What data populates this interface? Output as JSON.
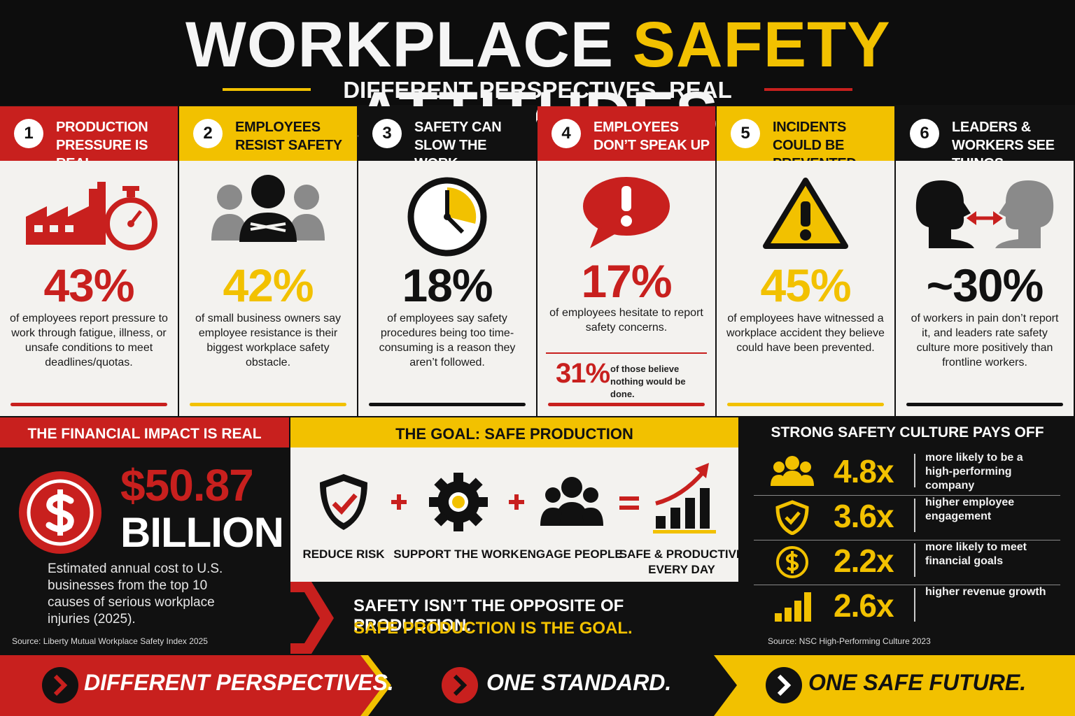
{
  "header": {
    "title_start": "WORKPLACE",
    "title_highlight": "SAFETY",
    "title_end": "ATTITUDES",
    "subtitle": "DIFFERENT PERSPECTIVES. REAL IMPACT."
  },
  "cards": [
    {
      "number": "1",
      "heading": "PRODUCTION PRESSURE IS REAL",
      "stat": "43%",
      "description": "of employees report pressure to work through fatigue, illness, or unsafe conditions to meet deadlines/quotas."
    },
    {
      "number": "2",
      "heading": "EMPLOYEES RESIST SAFETY",
      "stat": "42%",
      "description": "of small business owners say employee resistance is their biggest workplace safety obstacle."
    },
    {
      "number": "3",
      "heading": "SAFETY CAN SLOW THE WORK",
      "stat": "18%",
      "description": "of employees say safety procedures being too time-consuming is a reason they aren’t followed."
    },
    {
      "number": "4",
      "heading": "EMPLOYEES DON’T SPEAK UP",
      "stat": "17%",
      "description": "of employees hesitate to report safety concerns.",
      "sub_stat": "31%",
      "sub_text": "of those believe nothing would be done."
    },
    {
      "number": "5",
      "heading": "INCIDENTS COULD BE PREVENTED",
      "stat": "45%",
      "description": "of employees have witnessed a workplace accident they believe could have been prevented."
    },
    {
      "number": "6",
      "heading": "LEADERS & WORKERS SEE THINGS DIFFERENTLY",
      "stat": "~30%",
      "description": "of workers in pain don’t report it, and leaders rate safety culture more positively than frontline workers."
    }
  ],
  "financial": {
    "heading": "THE FINANCIAL IMPACT IS REAL",
    "amount": "$50.87",
    "unit": "BILLION",
    "description": "Estimated annual cost to U.S. businesses from the top 10 causes of serious workplace injuries (2025).",
    "source": "Source: Liberty Mutual Workplace Safety Index 2025"
  },
  "goal": {
    "heading": "THE GOAL: SAFE PRODUCTION",
    "steps": [
      "REDUCE RISK",
      "SUPPORT THE WORK",
      "ENGAGE PEOPLE",
      "SAFE & PRODUCTIVE EVERY DAY"
    ],
    "tagline": "SAFETY ISN’T THE OPPOSITE OF PRODUCTION.",
    "tagline_highlight": "SAFE PRODUCTION IS THE GOAL."
  },
  "culture": {
    "heading": "STRONG SAFETY CULTURE PAYS OFF",
    "items": [
      {
        "value": "4.8x",
        "text": "more likely to be a high-performing company"
      },
      {
        "value": "3.6x",
        "text": "higher employee engagement"
      },
      {
        "value": "2.2x",
        "text": "more likely to meet financial goals"
      },
      {
        "value": "2.6x",
        "text": "higher revenue growth"
      }
    ],
    "source": "Source: NSC High-Performing Culture 2023"
  },
  "footer": [
    "DIFFERENT PERSPECTIVES.",
    "ONE STANDARD.",
    "ONE SAFE FUTURE."
  ]
}
